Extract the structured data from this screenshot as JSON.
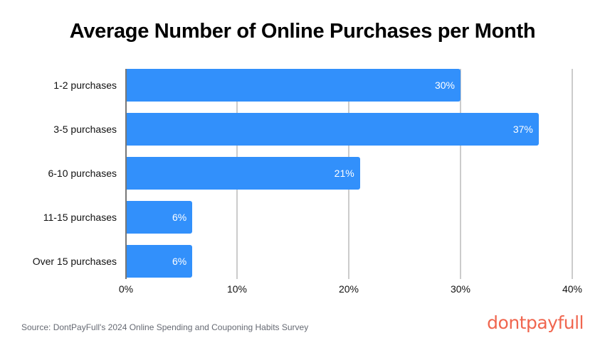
{
  "chart_data": {
    "type": "bar",
    "orientation": "horizontal",
    "title": "Average Number of Online Purchases per Month",
    "categories": [
      "1-2 purchases",
      "3-5 purchases",
      "6-10 purchases",
      "11-15 purchases",
      "Over 15 purchases"
    ],
    "values": [
      30,
      37,
      21,
      6,
      6
    ],
    "value_labels": [
      "30%",
      "37%",
      "21%",
      "6%",
      "6%"
    ],
    "xlabel": "",
    "ylabel": "",
    "xlim": [
      0,
      40
    ],
    "x_ticks": [
      "0%",
      "10%",
      "20%",
      "30%",
      "40%"
    ],
    "grid": true,
    "legend": null,
    "bar_color": "#3290fb"
  },
  "footer": {
    "source": "Source: DontPayFull's 2024 Online Spending and Couponing Habits Survey",
    "logo": "dontpayfull",
    "logo_color": "#f0664f"
  }
}
